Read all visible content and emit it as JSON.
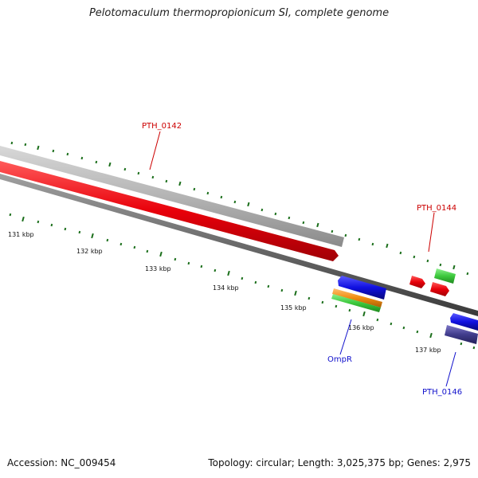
{
  "title": "Pelotomaculum thermopropionicum SI, complete genome",
  "footer": {
    "accession": "Accession: NC_009454",
    "summary": "Topology: circular; Length: 3,025,375 bp; Genes: 2,975"
  },
  "colors": {
    "background": "#ffffff",
    "backbone": "#707070",
    "gene_red": "#e8000a",
    "gene_grey": "#b4b4b4",
    "gene_blue": "#1010e0",
    "gene_green": "#3cc83c",
    "gene_orange": "#f08c10",
    "gene_navy": "#403c8c",
    "tick_green": "#1a6e1a",
    "label_red": "#cc0000",
    "label_blue": "#1010cc"
  },
  "scale_labels": [
    "131 kbp",
    "132 kbp",
    "133 kbp",
    "134 kbp",
    "135 kbp",
    "136 kbp",
    "137 kbp"
  ],
  "gene_labels": {
    "pth_0142": "PTH_0142",
    "pth_0144": "PTH_0144",
    "ompr": "OmpR",
    "pth_0146": "PTH_0146"
  }
}
